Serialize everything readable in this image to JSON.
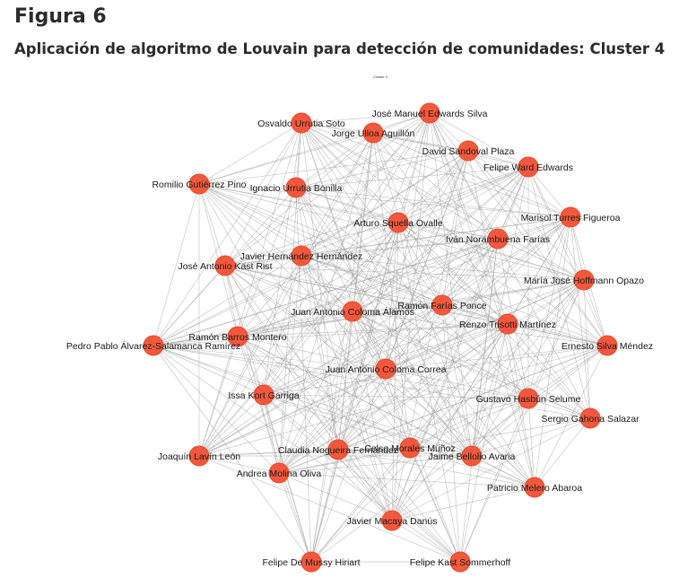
{
  "figure": {
    "label": "Figura 6",
    "title": "Aplicación de algoritmo de Louvain para detección de comunidades: Cluster 4",
    "inner_title": "Cluster 4"
  },
  "colors": {
    "node": "#f4583c",
    "edge": "#9a9a9a"
  },
  "nodes": [
    "José Manuel Edwards Silva",
    "Osvaldo Urrutia Soto",
    "Jorge Ulloa Aguillón",
    "David Sandoval Plaza",
    "Felipe Ward Edwards",
    "Romilio Gutiérrez Pino",
    "Ignacio Urrutia Bonilla",
    "Arturo Squella Ovalle",
    "Marisol Turres Figueroa",
    "Iván Norambuena Farías",
    "Javier Hernández Hernández",
    "José Antonio Kast Rist",
    "María José Hoffmann Opazo",
    "Ramón Farías Ponce",
    "Juan Antonio Coloma Álamos",
    "Renzo Trisotti Martínez",
    "Ramón Barros Montero",
    "Pedro Pablo Álvarez-Salamanca Ramírez",
    "Ernesto Silva Méndez",
    "Juan Antonio Coloma Correa",
    "Issa Kort Garriga",
    "Gustavo Hasbún Selume",
    "Sergio Gahona Salazar",
    "Celso Morales Muñoz",
    "Claudia Nogueira Fernández",
    "Jaime Bellolio Avaria",
    "Joaquín Lavín León",
    "Andrea Molina Oliva",
    "Patricio Melero Abaroa",
    "Javier Macaya Danús",
    "Felipe De Mussy Hiriart",
    "Felipe Kast Sommerhoff"
  ]
}
